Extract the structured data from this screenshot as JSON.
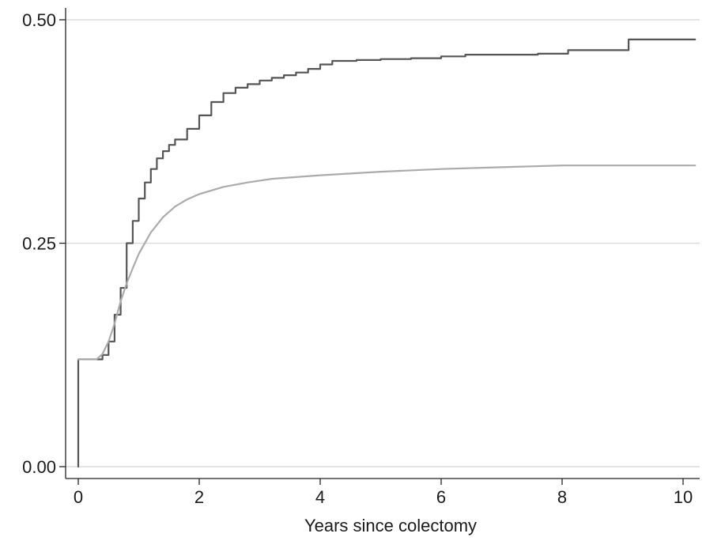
{
  "chart_data": {
    "type": "line",
    "title": "",
    "xlabel": "Years since colectomy",
    "ylabel": "",
    "xlim": [
      0,
      10.2
    ],
    "ylim": [
      0,
      0.5
    ],
    "x_ticks": [
      0,
      2,
      4,
      6,
      8,
      10
    ],
    "x_tick_labels": [
      "0",
      "2",
      "4",
      "6",
      "8",
      "10"
    ],
    "y_ticks": [
      0,
      0.25,
      0.5
    ],
    "y_tick_labels": [
      "0.00",
      "0.25",
      "0.50"
    ],
    "grid": "horizontal",
    "legend": "none",
    "series": [
      {
        "color": "#555555",
        "step": true,
        "points": [
          [
            0,
            0
          ],
          [
            0,
            0.12
          ],
          [
            0.3,
            0.12
          ],
          [
            0.4,
            0.125
          ],
          [
            0.5,
            0.14
          ],
          [
            0.6,
            0.17
          ],
          [
            0.7,
            0.2
          ],
          [
            0.8,
            0.25
          ],
          [
            0.9,
            0.275
          ],
          [
            1.0,
            0.3
          ],
          [
            1.1,
            0.318
          ],
          [
            1.2,
            0.333
          ],
          [
            1.3,
            0.345
          ],
          [
            1.4,
            0.353
          ],
          [
            1.5,
            0.36
          ],
          [
            1.6,
            0.366
          ],
          [
            1.8,
            0.378
          ],
          [
            2.0,
            0.393
          ],
          [
            2.2,
            0.408
          ],
          [
            2.4,
            0.418
          ],
          [
            2.6,
            0.424
          ],
          [
            2.8,
            0.428
          ],
          [
            3.0,
            0.432
          ],
          [
            3.2,
            0.435
          ],
          [
            3.4,
            0.438
          ],
          [
            3.6,
            0.441
          ],
          [
            3.8,
            0.445
          ],
          [
            4.0,
            0.45
          ],
          [
            4.2,
            0.454
          ],
          [
            4.6,
            0.455
          ],
          [
            5.0,
            0.456
          ],
          [
            5.5,
            0.457
          ],
          [
            6.0,
            0.459
          ],
          [
            6.4,
            0.461
          ],
          [
            7.0,
            0.461
          ],
          [
            7.6,
            0.462
          ],
          [
            8.1,
            0.466
          ],
          [
            9.1,
            0.478
          ],
          [
            10.2,
            0.478
          ]
        ]
      },
      {
        "color": "#ababab",
        "step": false,
        "points": [
          [
            0,
            0.12
          ],
          [
            0.3,
            0.12
          ],
          [
            0.4,
            0.126
          ],
          [
            0.5,
            0.14
          ],
          [
            0.6,
            0.16
          ],
          [
            0.7,
            0.185
          ],
          [
            0.8,
            0.205
          ],
          [
            0.9,
            0.222
          ],
          [
            1.0,
            0.238
          ],
          [
            1.2,
            0.262
          ],
          [
            1.4,
            0.279
          ],
          [
            1.6,
            0.291
          ],
          [
            1.8,
            0.299
          ],
          [
            2.0,
            0.305
          ],
          [
            2.4,
            0.313
          ],
          [
            2.8,
            0.318
          ],
          [
            3.2,
            0.322
          ],
          [
            3.6,
            0.324
          ],
          [
            4.0,
            0.326
          ],
          [
            5.0,
            0.33
          ],
          [
            6.0,
            0.333
          ],
          [
            7.0,
            0.335
          ],
          [
            8.0,
            0.337
          ],
          [
            9.0,
            0.337
          ],
          [
            10.2,
            0.337
          ]
        ]
      }
    ]
  }
}
